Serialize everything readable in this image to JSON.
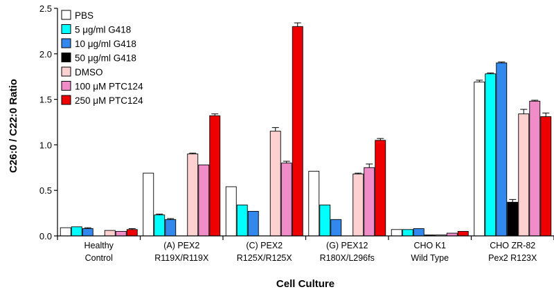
{
  "chart_data": {
    "type": "bar",
    "title": "",
    "xlabel": "Cell Culture",
    "ylabel": "C26:0 / C22:0 Ratio",
    "ylim": [
      0,
      2.5
    ],
    "yticks": [
      "0.0",
      "0.5",
      "1.0",
      "1.5",
      "2.0",
      "2.5"
    ],
    "grid": false,
    "legend_position": "top-left",
    "categories": [
      {
        "line1": "Healthy",
        "line2": "Control"
      },
      {
        "line1": "(A) PEX2",
        "line2": "R119X/R119X"
      },
      {
        "line1": "(C) PEX2",
        "line2": "R125X/R125X"
      },
      {
        "line1": "(G) PEX12",
        "line2": "R180X/L296fs"
      },
      {
        "line1": "CHO K1",
        "line2": "Wild Type"
      },
      {
        "line1": "CHO ZR-82",
        "line2": "Pex2 R123X"
      }
    ],
    "series": [
      {
        "name": "PBS",
        "color": "#ffffff",
        "values": [
          0.09,
          0.69,
          0.54,
          0.71,
          0.07,
          1.69
        ],
        "errors": [
          0,
          0,
          0,
          0,
          0,
          0.02
        ]
      },
      {
        "name": "5 μg/ml G418",
        "color": "#00ffff",
        "values": [
          0.1,
          0.23,
          0.34,
          0.34,
          0.07,
          1.78
        ],
        "errors": [
          0,
          0.01,
          0,
          0,
          0,
          0.01
        ]
      },
      {
        "name": "10 μg/ml G418",
        "color": "#3388ee",
        "values": [
          0.08,
          0.18,
          0.27,
          0.18,
          0.08,
          1.9
        ],
        "errors": [
          0.01,
          0.01,
          0,
          0,
          0,
          0.01
        ]
      },
      {
        "name": "50 μg/ml G418",
        "color": "#000000",
        "values": [
          null,
          null,
          null,
          null,
          0.01,
          0.37
        ],
        "errors": [
          0,
          0,
          0,
          0,
          0,
          0.03
        ]
      },
      {
        "name": "DMSO",
        "color": "#ffd0d0",
        "values": [
          0.06,
          0.9,
          1.15,
          0.68,
          0.01,
          1.34
        ],
        "errors": [
          0,
          0.01,
          0.04,
          0.01,
          0,
          0.05
        ]
      },
      {
        "name": "100 μM PTC124",
        "color": "#f08cc8",
        "values": [
          0.05,
          0.78,
          0.8,
          0.75,
          0.03,
          1.48
        ],
        "errors": [
          0,
          0,
          0.02,
          0.04,
          0,
          0.01
        ]
      },
      {
        "name": "250 μM PTC124",
        "color": "#ee0000",
        "values": [
          0.07,
          1.32,
          2.3,
          1.05,
          0.05,
          1.31
        ],
        "errors": [
          0.01,
          0.02,
          0.04,
          0.02,
          0,
          0.04
        ]
      }
    ]
  }
}
